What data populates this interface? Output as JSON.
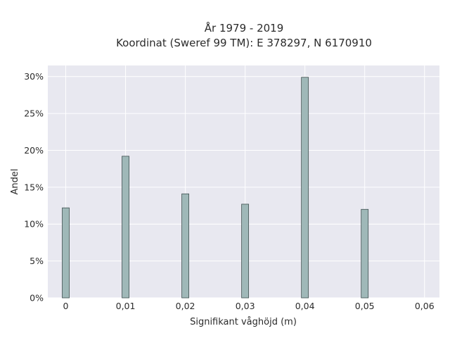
{
  "chart_data": {
    "type": "bar",
    "title_line1": "År 1979 - 2019",
    "title_line2": "Koordinat (Sweref 99 TM): E 378297, N 6170910",
    "xlabel": "Signifikant våghöjd (m)",
    "ylabel": "Andel",
    "x": [
      0,
      0.01,
      0.02,
      0.03,
      0.04,
      0.05
    ],
    "values": [
      12.2,
      19.2,
      14.1,
      12.7,
      29.9,
      12.0
    ],
    "xlim": [
      -0.003,
      0.0625
    ],
    "ylim": [
      0,
      31.5
    ],
    "x_ticks": [
      0,
      0.01,
      0.02,
      0.03,
      0.04,
      0.05,
      0.06
    ],
    "x_tick_labels": [
      "0",
      "0,01",
      "0,02",
      "0,03",
      "0,04",
      "0,05",
      "0,06"
    ],
    "y_ticks": [
      0,
      5,
      10,
      15,
      20,
      25,
      30
    ],
    "y_tick_labels": [
      "0%",
      "5%",
      "10%",
      "15%",
      "20%",
      "25%",
      "30%"
    ],
    "grid": true,
    "colors": {
      "bar_fill": "#9fb8b8",
      "bar_stroke": "#3f4f4f",
      "plot_bg": "#e8e8f0",
      "grid": "#ffffff"
    }
  }
}
